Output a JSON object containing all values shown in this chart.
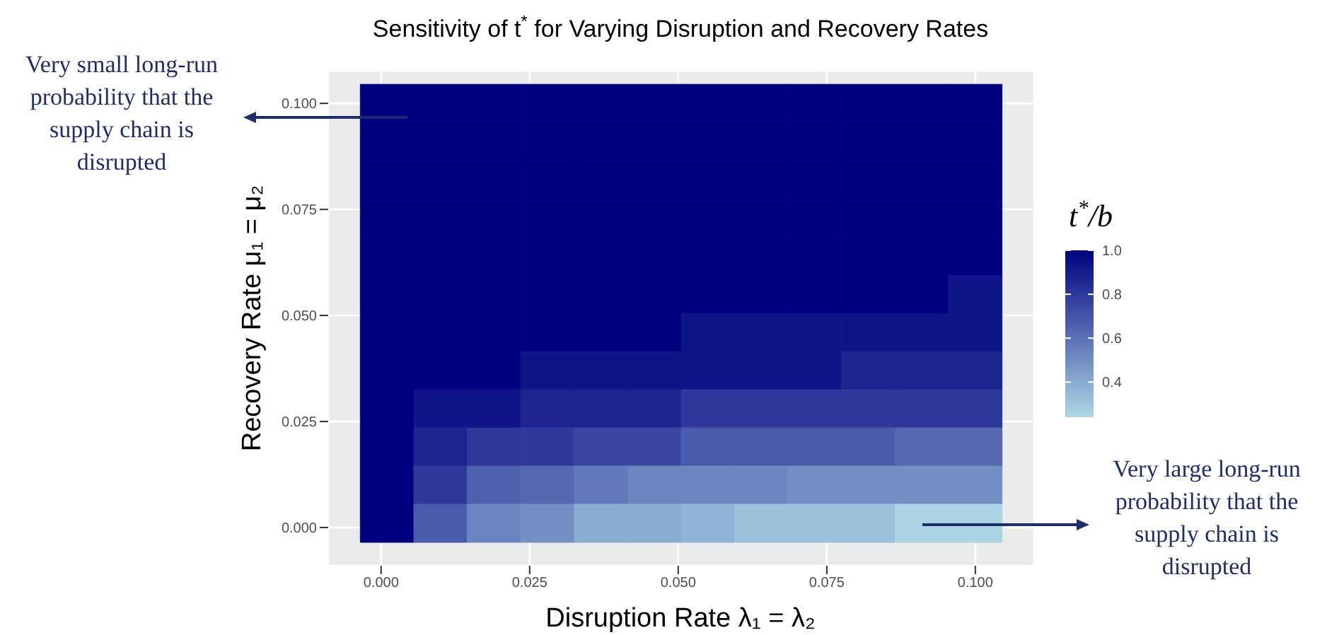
{
  "chart_data": {
    "type": "heatmap",
    "title": "Sensitivity of t$^{*}$ for Varying Disruption and Recovery Rates",
    "xlabel": "Disruption Rate   λ₁ = λ₂",
    "ylabel": "Recovery Rate   μ₁ = μ₂",
    "clabel": "t$^{*}$/b",
    "annotations": [
      "Very small long-run probability that the supply chain is disrupted",
      "Very large long-run probability that the supply chain is disrupted"
    ],
    "x": [
      0.001,
      0.01,
      0.019,
      0.028,
      0.037,
      0.046,
      0.055,
      0.064,
      0.073,
      0.082,
      0.091,
      0.1
    ],
    "y": [
      0.1,
      0.091,
      0.082,
      0.073,
      0.064,
      0.055,
      0.046,
      0.037,
      0.028,
      0.019,
      0.01,
      0.001
    ],
    "cells": [
      [
        1,
        1,
        1,
        1,
        1,
        1,
        1,
        1,
        1,
        1,
        1,
        1
      ],
      [
        1,
        1,
        1,
        1,
        1,
        1,
        1,
        1,
        1,
        1,
        1,
        1
      ],
      [
        1,
        1,
        1,
        1,
        1,
        1,
        1,
        1,
        1,
        1,
        1,
        1
      ],
      [
        1,
        1,
        1,
        1,
        1,
        1,
        1,
        1,
        1,
        1,
        1,
        1
      ],
      [
        1,
        1,
        1,
        1,
        1,
        1,
        1,
        1,
        1,
        1,
        1,
        1
      ],
      [
        1,
        1,
        1,
        1,
        1,
        1,
        1,
        1,
        1,
        1,
        1,
        0.93
      ],
      [
        1,
        1,
        1,
        1,
        1,
        1,
        0.93,
        0.93,
        0.93,
        0.93,
        0.93,
        0.93
      ],
      [
        1,
        1,
        1,
        0.93,
        0.93,
        0.93,
        0.93,
        0.93,
        0.93,
        0.87,
        0.87,
        0.87
      ],
      [
        1,
        0.93,
        0.93,
        0.87,
        0.87,
        0.87,
        0.8,
        0.8,
        0.8,
        0.8,
        0.8,
        0.8
      ],
      [
        1,
        0.87,
        0.8,
        0.8,
        0.75,
        0.75,
        0.68,
        0.68,
        0.68,
        0.68,
        0.63,
        0.63
      ],
      [
        1,
        0.8,
        0.66,
        0.63,
        0.57,
        0.53,
        0.53,
        0.53,
        0.5,
        0.5,
        0.5,
        0.5
      ],
      [
        1,
        0.68,
        0.53,
        0.5,
        0.4,
        0.4,
        0.37,
        0.32,
        0.32,
        0.32,
        0.25,
        0.25
      ]
    ],
    "colors": [
      "#add8e6",
      "#000080"
    ],
    "clim": [
      0.24,
      1.0
    ],
    "cticks": [
      0.4,
      0.6,
      0.8,
      {
        "value": 1,
        "label": "1.0"
      }
    ],
    "xlim": [
      -0.0089,
      0.1099
    ],
    "ylim": [
      -0.009,
      0.1077
    ],
    "xticks": [
      {
        "value": 0,
        "label": "0.000"
      },
      {
        "value": 0.025,
        "label": "0.025"
      },
      {
        "value": 0.05,
        "label": "0.050"
      },
      {
        "value": 0.075,
        "label": "0.075"
      },
      {
        "value": 0.1,
        "label": "0.100"
      }
    ],
    "yticks": [
      {
        "value": 0,
        "label": "0.000"
      },
      {
        "value": 0.025,
        "label": "0.025"
      },
      {
        "value": 0.05,
        "label": "0.050"
      },
      {
        "value": 0.075,
        "label": "0.075"
      },
      {
        "value": 0.1,
        "label": "0.100"
      }
    ],
    "grid": true
  }
}
